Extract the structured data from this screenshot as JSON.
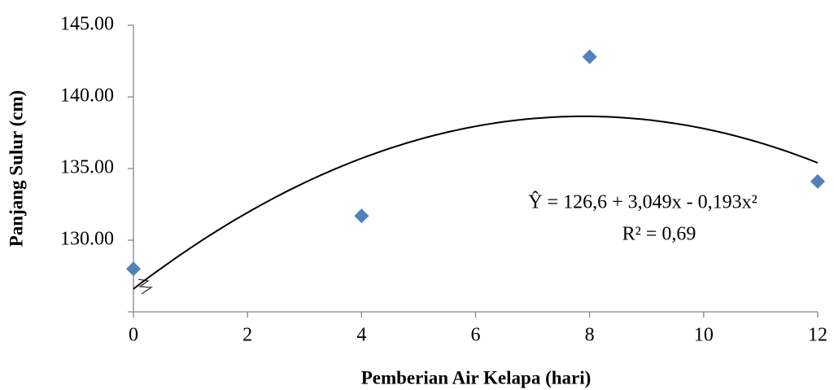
{
  "chart_data": {
    "type": "scatter",
    "x_label": "Pemberian Air Kelapa (hari)",
    "y_label": "Panjang Sulur (cm)",
    "series": [
      {
        "color": "#4f81bd",
        "x": [
          0,
          4,
          8,
          12
        ],
        "values": [
          128.0,
          131.7,
          142.8,
          134.1
        ]
      }
    ],
    "trendline": {
      "color": "#000000",
      "coefficients": [
        126.6,
        3.049,
        -0.193
      ],
      "equation": "Ŷ =  126,6 + 3,049x - 0,193x²",
      "r_squared": "R² = 0,69"
    },
    "xlim": [
      0,
      12
    ],
    "xticks": [
      0,
      2,
      4,
      6,
      8,
      10,
      12
    ],
    "ylim": [
      125,
      145
    ],
    "yticks": [
      {
        "value": 130,
        "label": "130.00"
      },
      {
        "value": 135,
        "label": "135.00"
      },
      {
        "value": 140,
        "label": "140.00"
      },
      {
        "value": 145,
        "label": "145.00"
      }
    ],
    "grid": false
  }
}
